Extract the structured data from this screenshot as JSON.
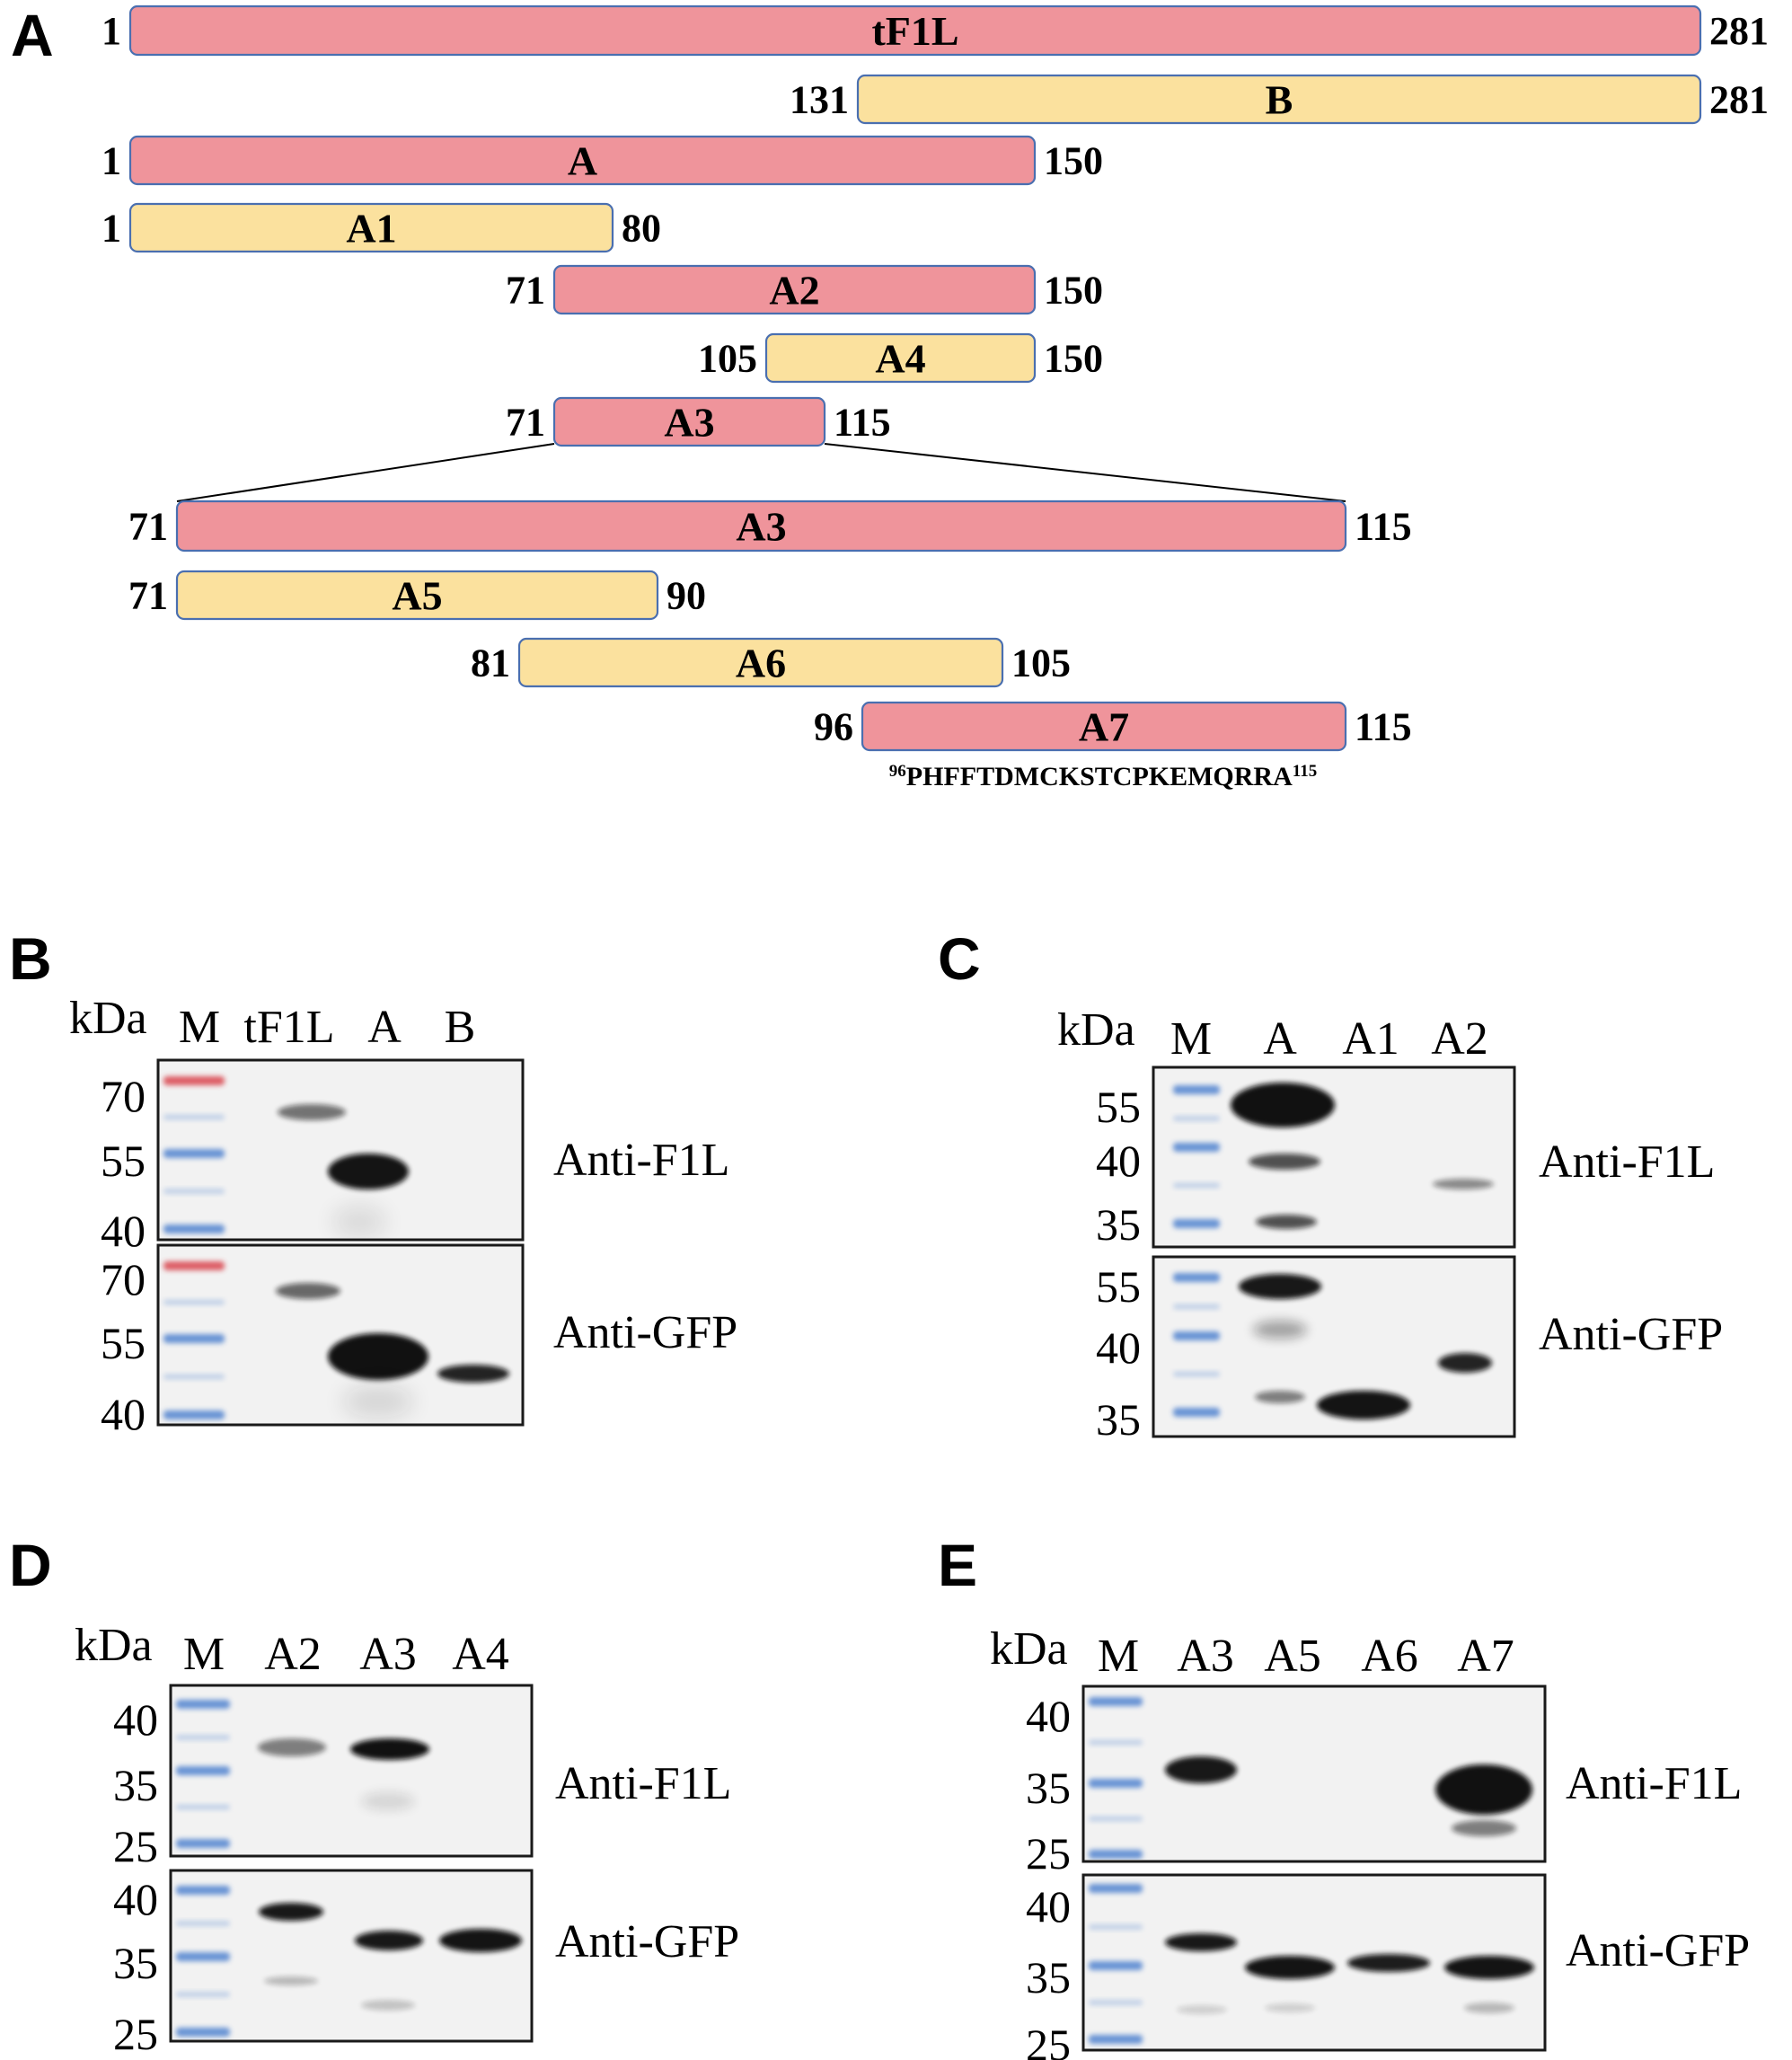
{
  "colors": {
    "pink": "#ef949b",
    "yellow": "#fbe19e",
    "bar_border": "#4a6fb0",
    "marker_blue": "#4f82cf",
    "marker_red": "#d9434b",
    "band": "#0b0b0b"
  },
  "panel_a": {
    "letter": "A",
    "constructs": [
      {
        "name": "tF1L",
        "start": "1",
        "end": "281",
        "color": "pink"
      },
      {
        "name": "B",
        "start": "131",
        "end": "281",
        "color": "yellow"
      },
      {
        "name": "A",
        "start": "1",
        "end": "150",
        "color": "pink"
      },
      {
        "name": "A1",
        "start": "1",
        "end": "80",
        "color": "yellow"
      },
      {
        "name": "A2",
        "start": "71",
        "end": "150",
        "color": "pink"
      },
      {
        "name": "A4",
        "start": "105",
        "end": "150",
        "color": "yellow"
      },
      {
        "name": "A3",
        "start": "71",
        "end": "115",
        "color": "pink"
      }
    ],
    "zoom_constructs": [
      {
        "name": "A3",
        "start": "71",
        "end": "115",
        "color": "pink"
      },
      {
        "name": "A5",
        "start": "71",
        "end": "90",
        "color": "yellow"
      },
      {
        "name": "A6",
        "start": "81",
        "end": "105",
        "color": "yellow"
      },
      {
        "name": "A7",
        "start": "96",
        "end": "115",
        "color": "pink"
      }
    ],
    "sequence": {
      "start": "96",
      "residues": "PHFFTDMCKSTCPKEMQRRA",
      "end": "115"
    }
  },
  "blots": [
    {
      "letter": "B",
      "unit": "kDa",
      "marker_lane": "M",
      "lanes": [
        "tF1L",
        "A",
        "B"
      ],
      "top": {
        "antibody": "Anti-F1L",
        "ticks": [
          "70",
          "55",
          "40"
        ]
      },
      "bottom": {
        "antibody": "Anti-GFP",
        "ticks": [
          "70",
          "55",
          "40"
        ]
      }
    },
    {
      "letter": "C",
      "unit": "kDa",
      "marker_lane": "M",
      "lanes": [
        "A",
        "A1",
        "A2"
      ],
      "top": {
        "antibody": "Anti-F1L",
        "ticks": [
          "55",
          "40",
          "35"
        ]
      },
      "bottom": {
        "antibody": "Anti-GFP",
        "ticks": [
          "55",
          "40",
          "35"
        ]
      }
    },
    {
      "letter": "D",
      "unit": "kDa",
      "marker_lane": "M",
      "lanes": [
        "A2",
        "A3",
        "A4"
      ],
      "top": {
        "antibody": "Anti-F1L",
        "ticks": [
          "40",
          "35",
          "25"
        ]
      },
      "bottom": {
        "antibody": "Anti-GFP",
        "ticks": [
          "40",
          "35",
          "25"
        ]
      }
    },
    {
      "letter": "E",
      "unit": "kDa",
      "marker_lane": "M",
      "lanes": [
        "A3",
        "A5",
        "A6",
        "A7"
      ],
      "top": {
        "antibody": "Anti-F1L",
        "ticks": [
          "40",
          "35",
          "25"
        ]
      },
      "bottom": {
        "antibody": "Anti-GFP",
        "ticks": [
          "40",
          "35",
          "25"
        ]
      }
    }
  ]
}
